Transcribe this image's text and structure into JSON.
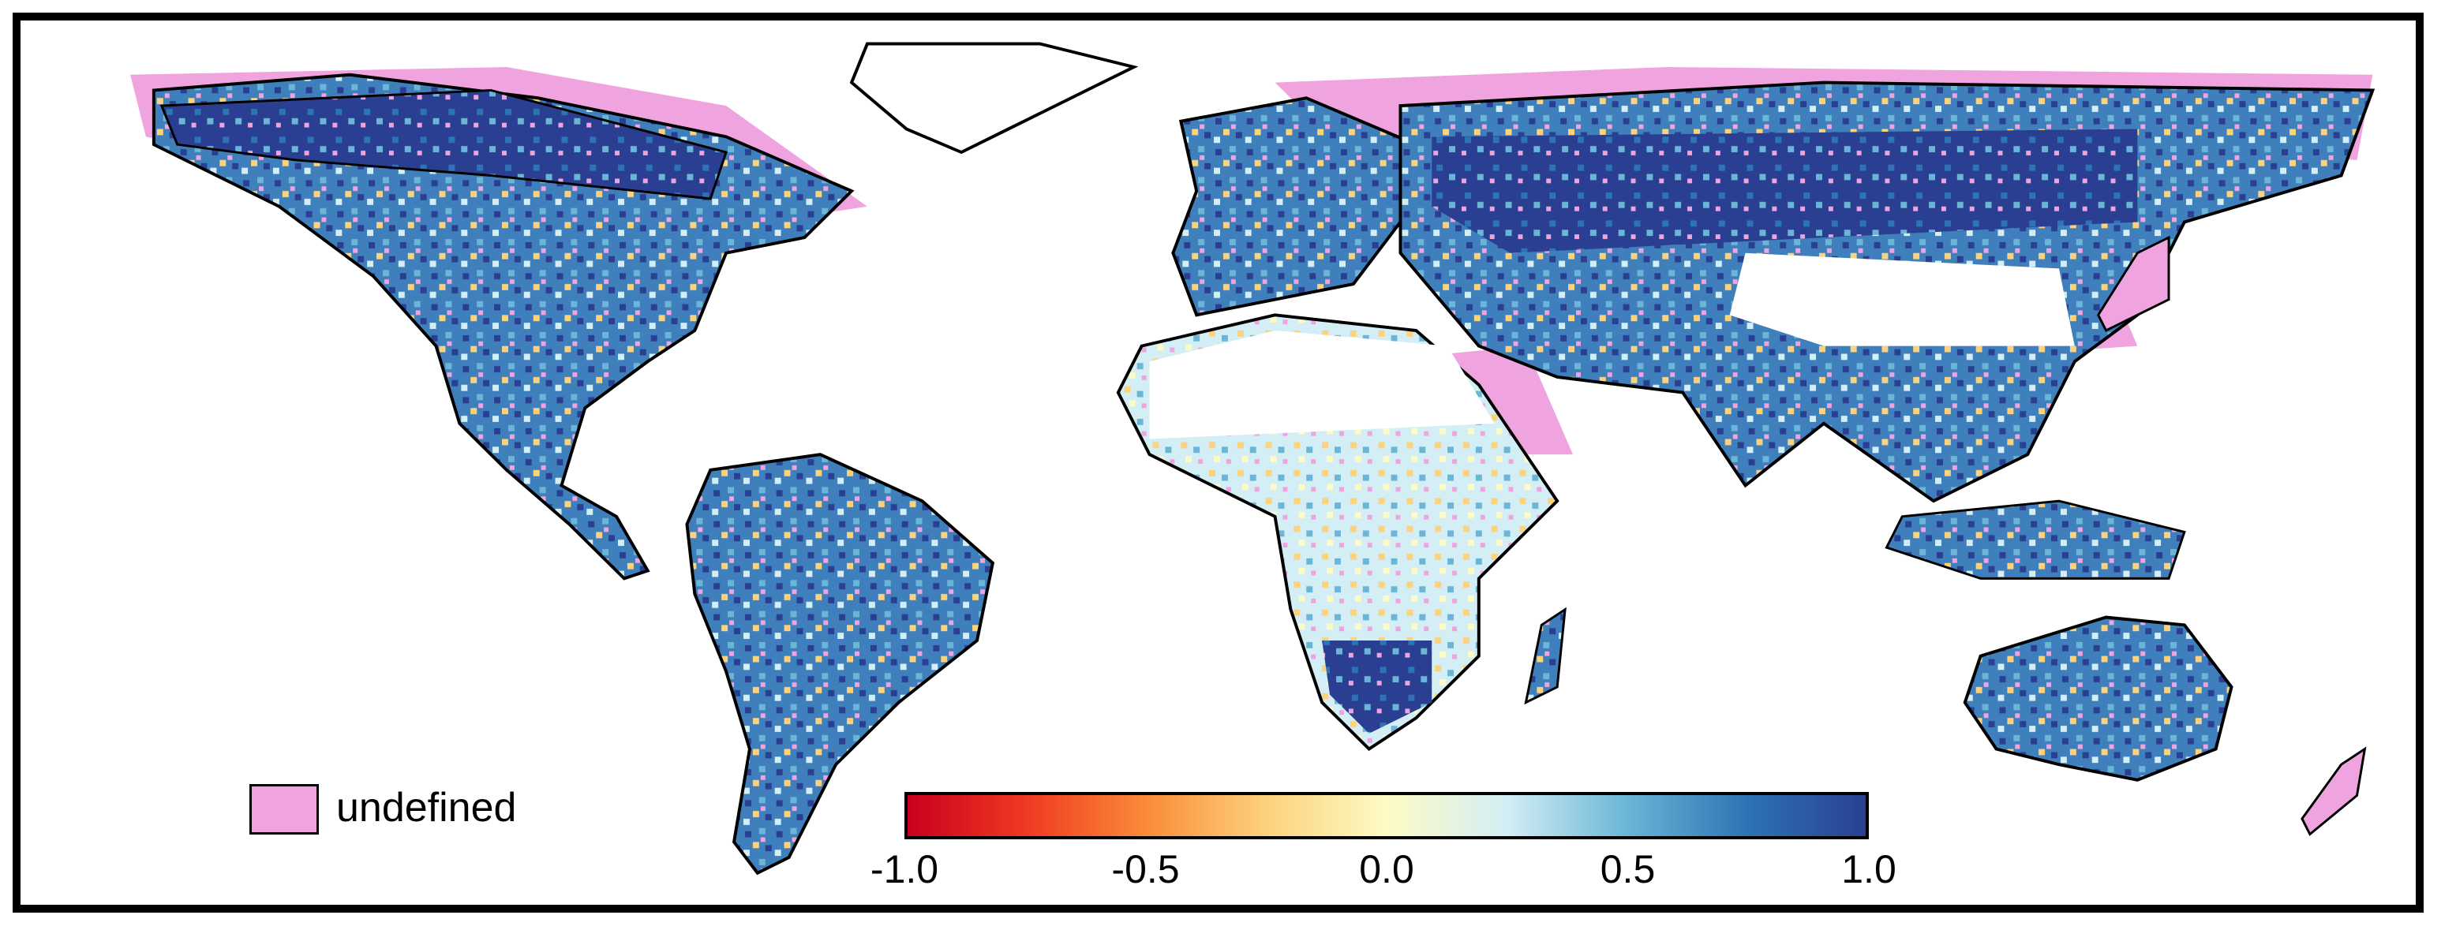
{
  "legend": {
    "undefined_label": "undefined",
    "undefined_color": "#efa4e0"
  },
  "colorbar": {
    "min": -1.0,
    "max": 1.0,
    "ticks": [
      "-1.0",
      "-0.5",
      "0.0",
      "0.5",
      "1.0"
    ],
    "colors": [
      "#c8001e",
      "#f03a22",
      "#fa8c38",
      "#fcd27e",
      "#fdfbc5",
      "#d3eef5",
      "#6bb6d7",
      "#2d74b4",
      "#2a3f91"
    ]
  },
  "colors": {
    "land_outline": "#000000",
    "background": "#ffffff",
    "frame": "#000000"
  }
}
